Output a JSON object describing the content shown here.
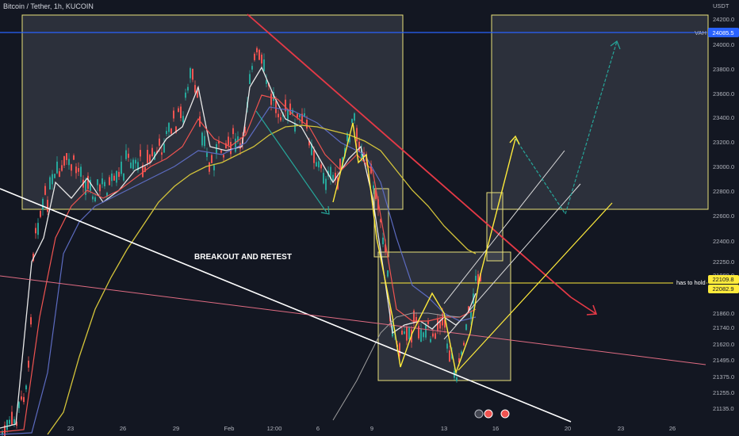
{
  "header": {
    "title": "Bitcoin / Tether, 1h, KUCOIN",
    "currency": "USDT"
  },
  "price_axis": {
    "labels": [
      "24200.0",
      "24000.0",
      "23800.0",
      "23600.0",
      "23400.0",
      "23200.0",
      "23000.0",
      "22800.0",
      "22600.0",
      "22400.0",
      "22250.0",
      "21980.0",
      "21860.0",
      "21740.0",
      "21620.0",
      "21495.0",
      "21375.0",
      "21255.0",
      "21135.0"
    ]
  },
  "time_axis": {
    "labels": [
      "23",
      "26",
      "29",
      "Feb",
      "12:00",
      "6",
      "9",
      "13",
      "16",
      "20",
      "23",
      "26"
    ]
  },
  "price_tags": [
    {
      "text": "24085.5",
      "color": "#2962ff",
      "text_color": "#ffffff"
    },
    {
      "text": "22109.8",
      "color": "#ffeb3b",
      "text_color": "#131722"
    },
    {
      "text": "22082.9",
      "color": "#ffeb3b",
      "text_color": "#131722"
    }
  ],
  "line_labels": {
    "vah": "VAH",
    "hold": "has to hold"
  },
  "annotations": {
    "breakout": "BREAKOUT AND RETEST"
  },
  "colors": {
    "background": "#131722",
    "up": "#26a69a",
    "down": "#ef5350",
    "vah": "#2962ff",
    "hold": "#ffeb3b",
    "box": "#e8e07a",
    "white_trend": "#ffffff",
    "red_trend": "#e53946",
    "pink_trend": "#e06c82",
    "green_arrow": "#26a69a",
    "yellow_path": "#ffeb3b"
  },
  "chart_data": {
    "type": "candlestick",
    "symbol": "Bitcoin / Tether",
    "interval": "1h",
    "exchange": "KUCOIN",
    "y_unit": "USDT",
    "y_ticks": [
      24200,
      24000,
      23800,
      23600,
      23400,
      23200,
      23000,
      22800,
      22600,
      22400,
      22250,
      21980,
      21860,
      21740,
      21620,
      21495,
      21375,
      21255,
      21135
    ],
    "x_ticks": [
      "23",
      "26",
      "29",
      "Feb",
      "12:00",
      "6",
      "9",
      "13",
      "16",
      "20",
      "23",
      "26"
    ],
    "levels": [
      {
        "label": "VAH",
        "price": 24085.5
      },
      {
        "label": "has to hold",
        "price": 22109.8
      },
      {
        "price": 22082.9
      }
    ],
    "annotation_text": "BREAKOUT AND RETEST",
    "grid": false
  }
}
